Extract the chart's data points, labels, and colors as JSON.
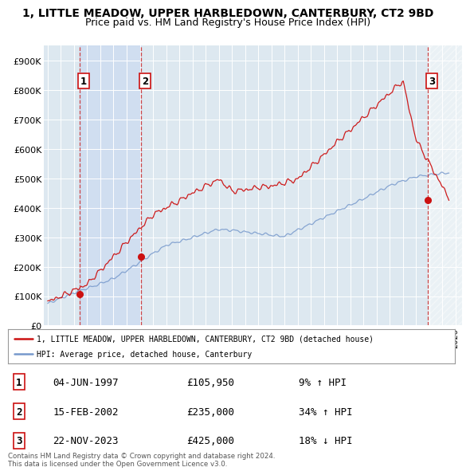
{
  "title": "1, LITTLE MEADOW, UPPER HARBLEDOWN, CANTERBURY, CT2 9BD",
  "subtitle": "Price paid vs. HM Land Registry's House Price Index (HPI)",
  "ylabel_ticks": [
    "£0",
    "£100K",
    "£200K",
    "£300K",
    "£400K",
    "£500K",
    "£600K",
    "£700K",
    "£800K",
    "£900K"
  ],
  "ytick_values": [
    0,
    100000,
    200000,
    300000,
    400000,
    500000,
    600000,
    700000,
    800000,
    900000
  ],
  "ylim": [
    0,
    950000
  ],
  "xlim_start": 1994.7,
  "xlim_end": 2026.5,
  "red_color": "#cc1111",
  "blue_color": "#7799cc",
  "background_color": "#dde8f0",
  "sale_dates": [
    1997.42,
    2002.12,
    2023.9
  ],
  "sale_prices": [
    105950,
    235000,
    425000
  ],
  "sale_labels": [
    "1",
    "2",
    "3"
  ],
  "dashed_line_color": "#cc3333",
  "legend_entry1": "1, LITTLE MEADOW, UPPER HARBLEDOWN, CANTERBURY, CT2 9BD (detached house)",
  "legend_entry2": "HPI: Average price, detached house, Canterbury",
  "table_data": [
    [
      "1",
      "04-JUN-1997",
      "£105,950",
      "9% ↑ HPI"
    ],
    [
      "2",
      "15-FEB-2002",
      "£235,000",
      "34% ↑ HPI"
    ],
    [
      "3",
      "22-NOV-2023",
      "£425,000",
      "18% ↓ HPI"
    ]
  ],
  "footnote": "Contains HM Land Registry data © Crown copyright and database right 2024.\nThis data is licensed under the Open Government Licence v3.0.",
  "title_fontsize": 10,
  "subtitle_fontsize": 9
}
